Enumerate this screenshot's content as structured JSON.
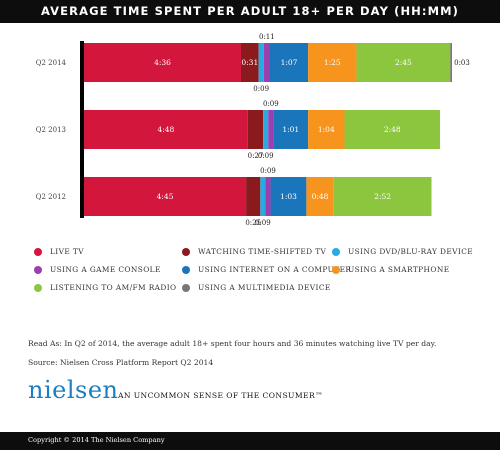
{
  "header": {
    "title": "AVERAGE TIME SPENT PER ADULT 18+ PER DAY (HH:MM)"
  },
  "chart_data": {
    "type": "bar",
    "orientation": "horizontal",
    "stacked": true,
    "title": "AVERAGE TIME SPENT PER ADULT 18+ PER DAY (HH:MM)",
    "unit": "HH:MM",
    "categories": [
      "Q2 2014",
      "Q2 2013",
      "Q2 2012"
    ],
    "series": [
      {
        "name": "LIVE TV",
        "color": "#d2163c",
        "labels": [
          "4:36",
          "4:48",
          "4:45"
        ],
        "values": [
          276,
          288,
          285
        ]
      },
      {
        "name": "WATCHING TIME-SHIFTED TV",
        "color": "#8b1a1e",
        "labels": [
          "0:31",
          "0:27",
          "0:25"
        ],
        "values": [
          31,
          27,
          25
        ]
      },
      {
        "name": "USING DVD/BLU-RAY DEVICE",
        "color": "#29abe2",
        "labels": [
          "0:09",
          "0:09",
          "0:09"
        ],
        "values": [
          9,
          9,
          9
        ]
      },
      {
        "name": "USING A GAME CONSOLE",
        "color": "#9b3fb1",
        "labels": [
          "0:11",
          "0:09",
          "0:09"
        ],
        "values": [
          11,
          9,
          9
        ]
      },
      {
        "name": "USING INTERNET ON A COMPUTER",
        "color": "#1b75bb",
        "labels": [
          "1:07",
          "1:01",
          "1:03"
        ],
        "values": [
          67,
          61,
          63
        ]
      },
      {
        "name": "USING A SMARTPHONE",
        "color": "#f7941d",
        "labels": [
          "1:25",
          "1:04",
          "0:48"
        ],
        "values": [
          85,
          64,
          48
        ]
      },
      {
        "name": "LISTENING TO AM/FM RADIO",
        "color": "#8cc63e",
        "labels": [
          "2:45",
          "2:48",
          "2:52"
        ],
        "values": [
          165,
          168,
          172
        ]
      },
      {
        "name": "USING A MULTIMEDIA DEVICE",
        "color": "#777777",
        "labels": [
          "0:03",
          null,
          null
        ],
        "values": [
          3,
          null,
          null
        ]
      }
    ]
  },
  "legend": {
    "items": [
      {
        "label": "LIVE TV",
        "color": "#d2163c"
      },
      {
        "label": "WATCHING TIME-SHIFTED TV",
        "color": "#8b1a1e"
      },
      {
        "label": "USING DVD/BLU-RAY DEVICE",
        "color": "#29abe2"
      },
      {
        "label": "USING A GAME CONSOLE",
        "color": "#9b3fb1"
      },
      {
        "label": "USING INTERNET ON A COMPUTER",
        "color": "#1b75bb"
      },
      {
        "label": "USING A SMARTPHONE",
        "color": "#f7941d"
      },
      {
        "label": "LISTENING TO AM/FM RADIO",
        "color": "#8cc63e"
      },
      {
        "label": "USING A MULTIMEDIA DEVICE",
        "color": "#777777"
      }
    ]
  },
  "notes": {
    "read_as": "Read As: In Q2 of 2014, the average adult 18+ spent four hours and 36 minutes watching live TV per day.",
    "source": "Source: Nielsen Cross Platform Report Q2 2014"
  },
  "brand": {
    "logo": "nielsen",
    "tagline": "AN UNCOMMON SENSE OF THE CONSUMER™"
  },
  "footer": {
    "copyright": "Copyright © 2014 The Nielsen Company"
  }
}
